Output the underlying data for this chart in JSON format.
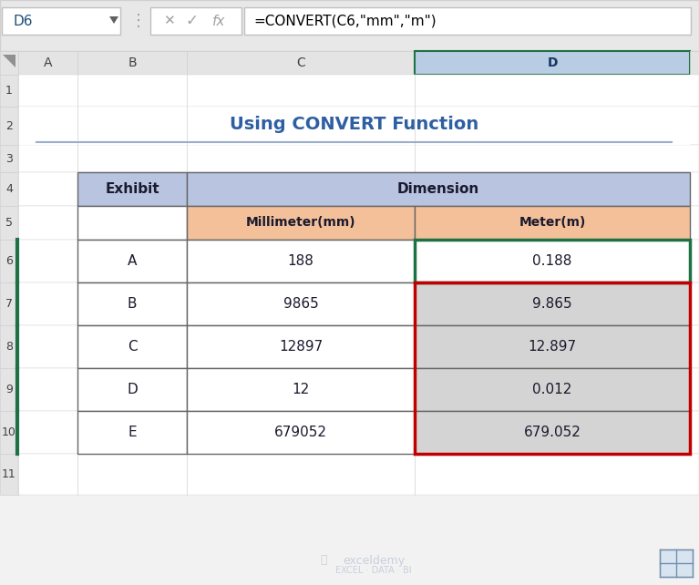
{
  "title": "Using CONVERT Function",
  "formula_bar_text": "=CONVERT(C6,\"mm\",\"m\")",
  "cell_ref": "D6",
  "table_data": [
    [
      "A",
      "188",
      "0.188"
    ],
    [
      "B",
      "9865",
      "9.865"
    ],
    [
      "C",
      "12897",
      "12.897"
    ],
    [
      "D",
      "12",
      "0.012"
    ],
    [
      "E",
      "679052",
      "679.052"
    ]
  ],
  "bg_color": "#f2f2f2",
  "excel_bg": "#ffffff",
  "header_blue": "#b8c4e0",
  "header_orange": "#f4c09a",
  "row_light_gray": "#d4d4d4",
  "green_border": "#1e7145",
  "red_border": "#c00000",
  "title_color": "#2e5fa3",
  "toolbar_bg": "#e8e8e8",
  "col_header_bg": "#e4e4e4",
  "row_header_bg": "#e4e4e4",
  "selected_col_bg": "#b8cce4",
  "selected_col_text": "#17375e",
  "watermark_color": "#c8d0dc",
  "cell_border": "#d0d0d0",
  "table_border": "#666666",
  "formula_bar_border": "#c0c0c0"
}
